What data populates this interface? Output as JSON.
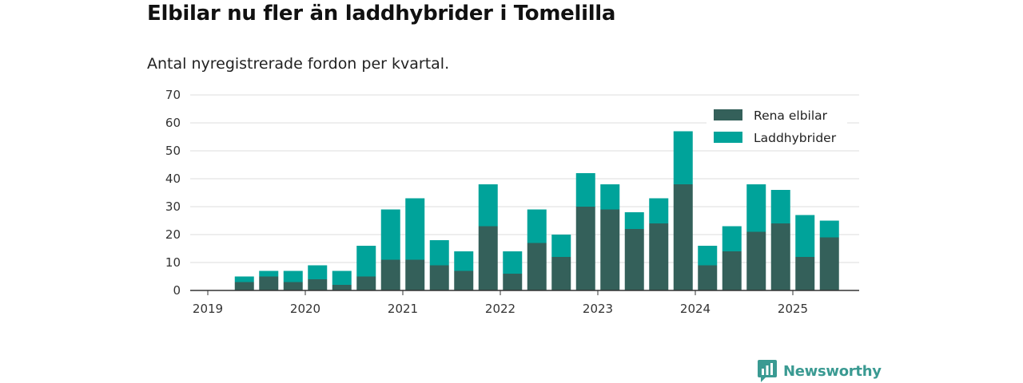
{
  "title": "Elbilar nu fler än laddhybrider i Tomelilla",
  "subtitle": "Antal nyregistrerade fordon per kvartal.",
  "logo": {
    "text": "Newsworthy",
    "icon": "newsworthy-chart-icon",
    "color": "#3a9a92"
  },
  "colors": {
    "electric": "#34605a",
    "plugin_hybrid": "#00a39a",
    "grid": "#dddddd",
    "axis": "#333333"
  },
  "chart_data": {
    "type": "bar",
    "stacked": true,
    "series": [
      {
        "name": "Rena elbilar",
        "values": [
          3,
          5,
          3,
          4,
          2,
          5,
          11,
          11,
          9,
          7,
          23,
          6,
          17,
          12,
          30,
          29,
          22,
          24,
          38,
          9,
          14,
          21,
          24,
          12,
          19
        ]
      },
      {
        "name": "Laddhybrider",
        "values": [
          2,
          2,
          4,
          5,
          5,
          11,
          18,
          22,
          9,
          7,
          15,
          8,
          12,
          8,
          12,
          9,
          6,
          9,
          19,
          7,
          9,
          17,
          12,
          15,
          6
        ]
      }
    ],
    "x_start_year": 2019,
    "first_quarter": 2,
    "x_ticks": [
      "2019",
      "2020",
      "2021",
      "2022",
      "2023",
      "2024",
      "2025"
    ],
    "y_ticks": [
      0,
      10,
      20,
      30,
      40,
      50,
      60,
      70
    ],
    "ylim": [
      0,
      70
    ],
    "grid": true,
    "legend_position": "top-right",
    "xlabel": "",
    "ylabel": ""
  }
}
